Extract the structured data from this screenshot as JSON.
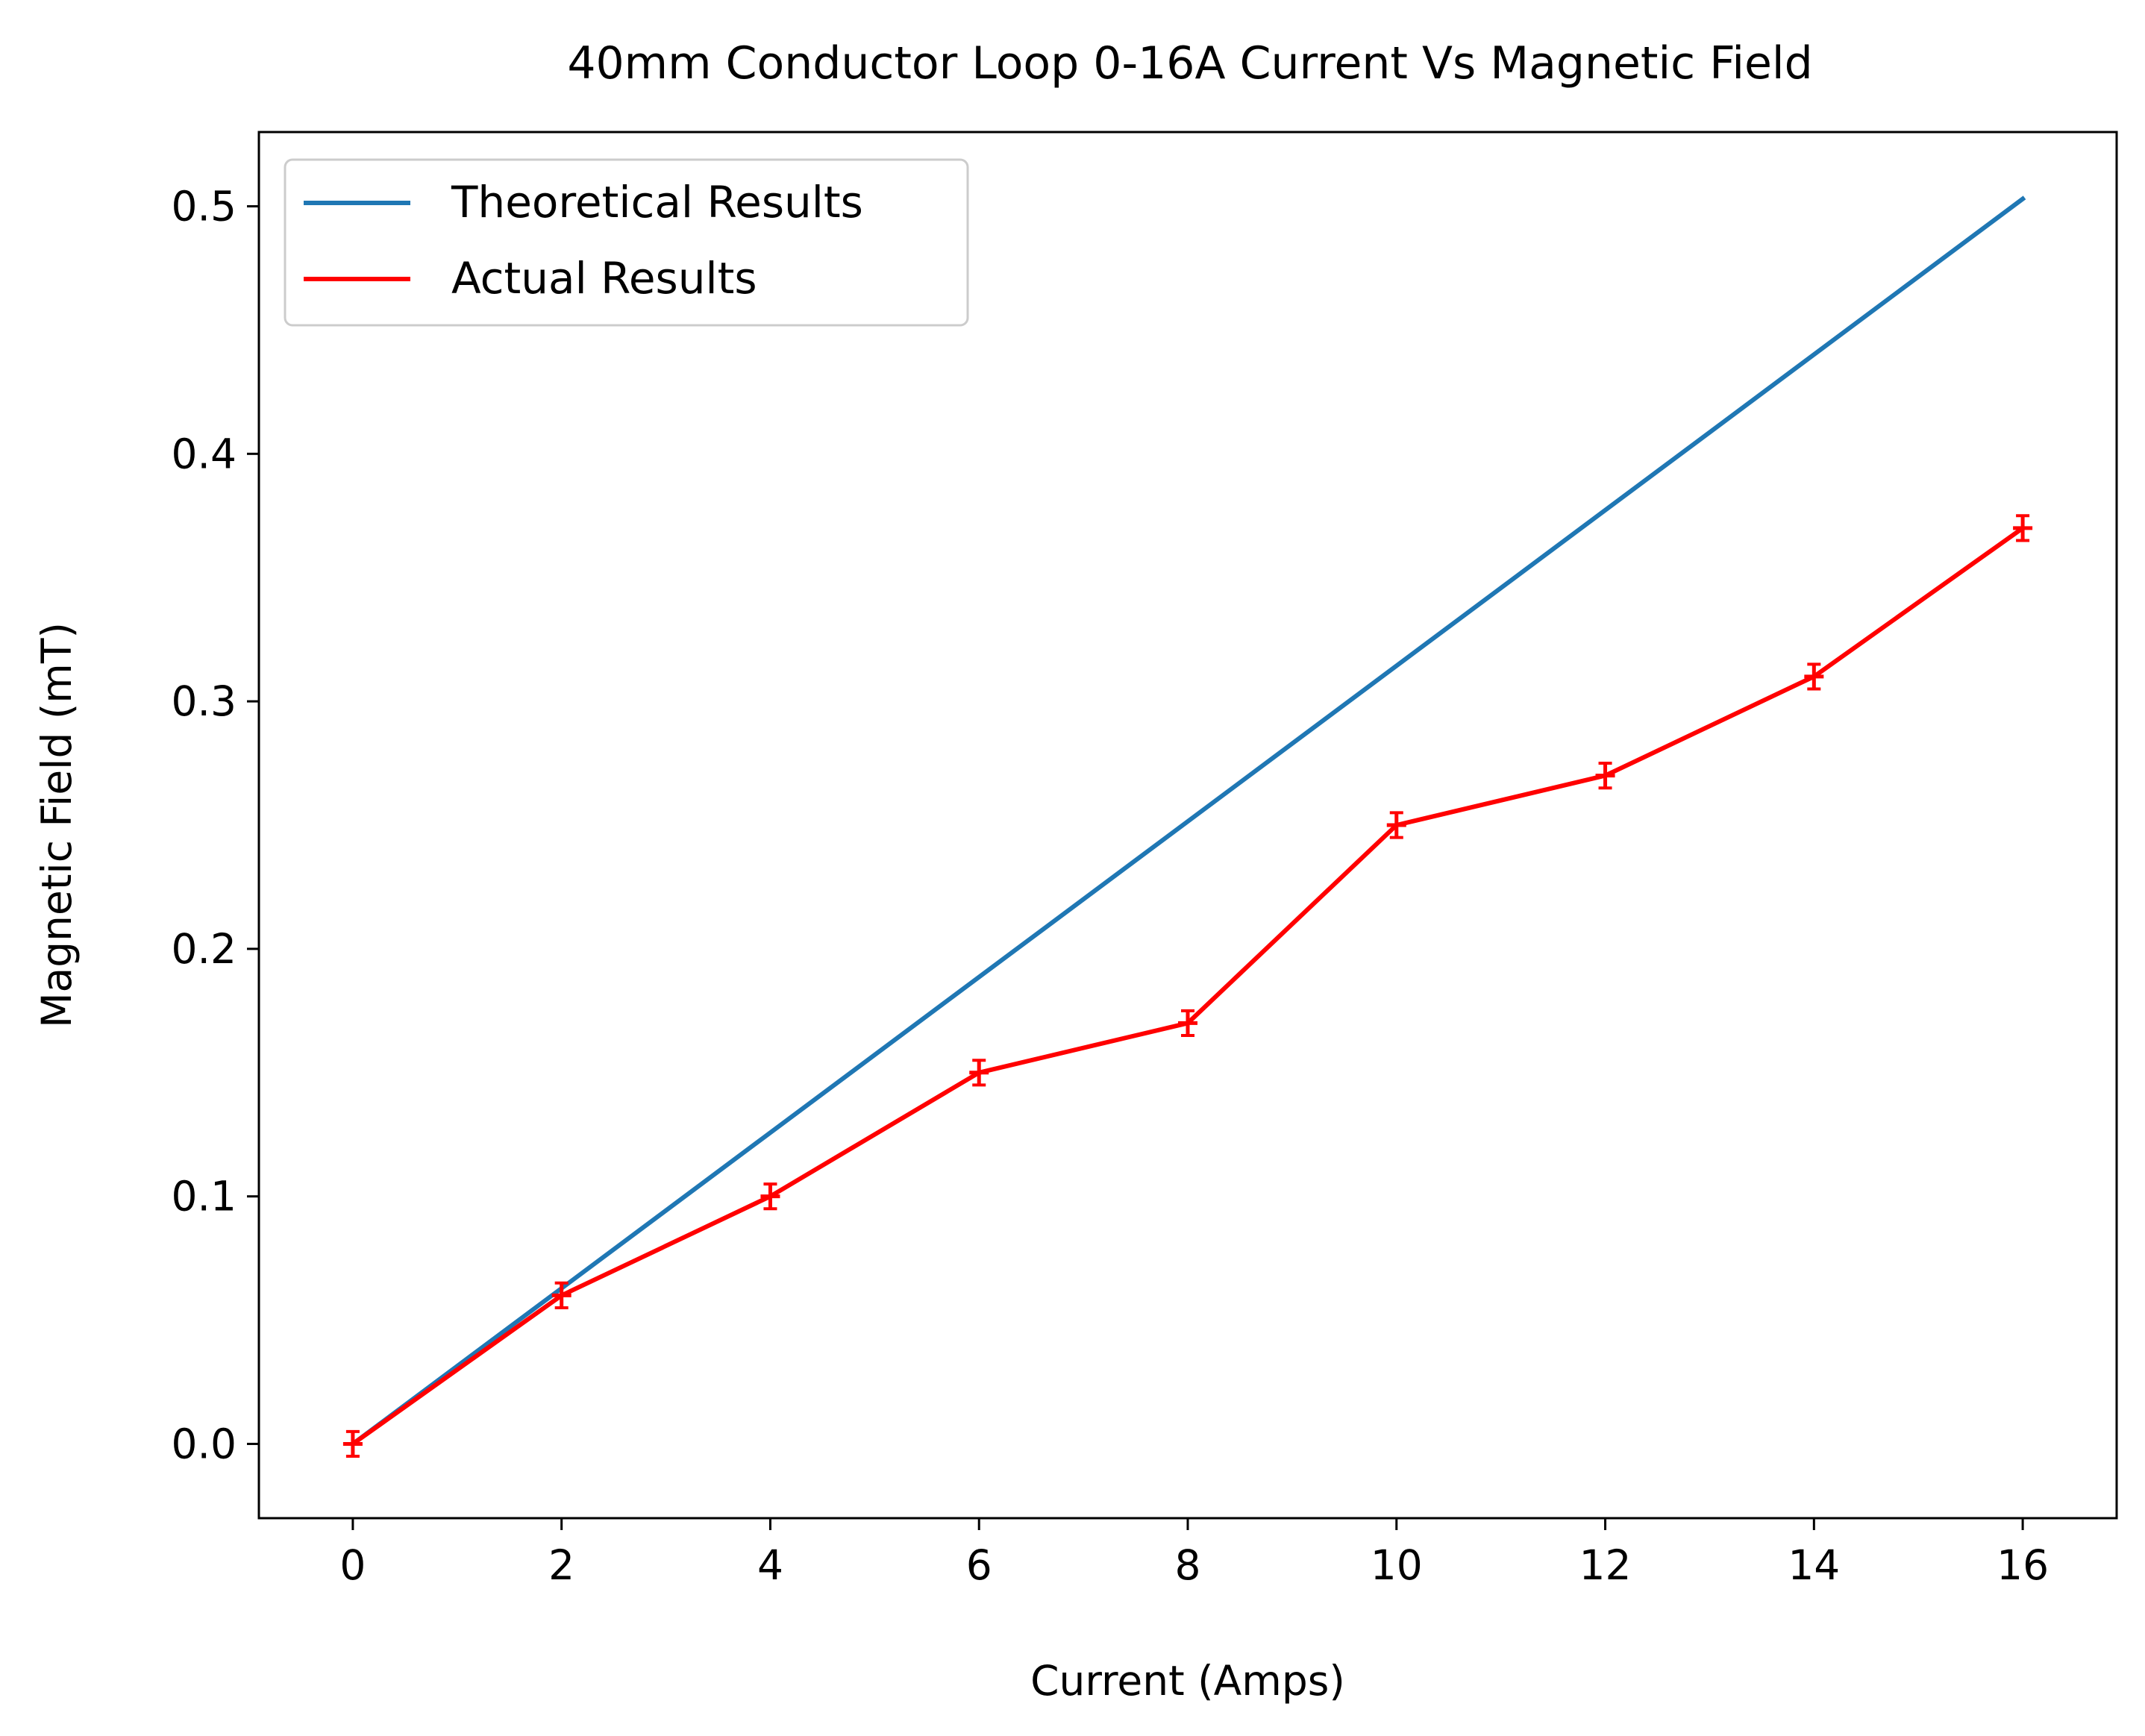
{
  "chart_data": {
    "type": "line",
    "title": "40mm Conductor Loop 0-16A Current Vs Magnetic Field",
    "xlabel": "Current (Amps)",
    "ylabel": "Magnetic Field (mT)",
    "xlim": [
      -0.9,
      16.9
    ],
    "ylim": [
      -0.03,
      0.53
    ],
    "xticks": [
      0,
      2,
      4,
      6,
      8,
      10,
      12,
      14,
      16
    ],
    "xtick_labels": [
      "0",
      "2",
      "4",
      "6",
      "8",
      "10",
      "12",
      "14",
      "16"
    ],
    "yticks": [
      0.0,
      0.1,
      0.2,
      0.3,
      0.4,
      0.5
    ],
    "ytick_labels": [
      "0.0",
      "0.1",
      "0.2",
      "0.3",
      "0.4",
      "0.5"
    ],
    "grid": false,
    "legend": {
      "location": "top-left",
      "entries": [
        "Theoretical Results",
        "Actual Results"
      ]
    },
    "series": [
      {
        "name": "Theoretical Results",
        "color": "#1f77b4",
        "x": [
          0,
          16
        ],
        "y": [
          0.0,
          0.503
        ],
        "error": null
      },
      {
        "name": "Actual Results",
        "color": "#ff0000",
        "x": [
          0,
          2,
          4,
          6,
          8,
          10,
          12,
          14,
          16
        ],
        "y": [
          0.0,
          0.06,
          0.1,
          0.15,
          0.17,
          0.25,
          0.27,
          0.31,
          0.37
        ],
        "error": 0.005
      }
    ]
  }
}
